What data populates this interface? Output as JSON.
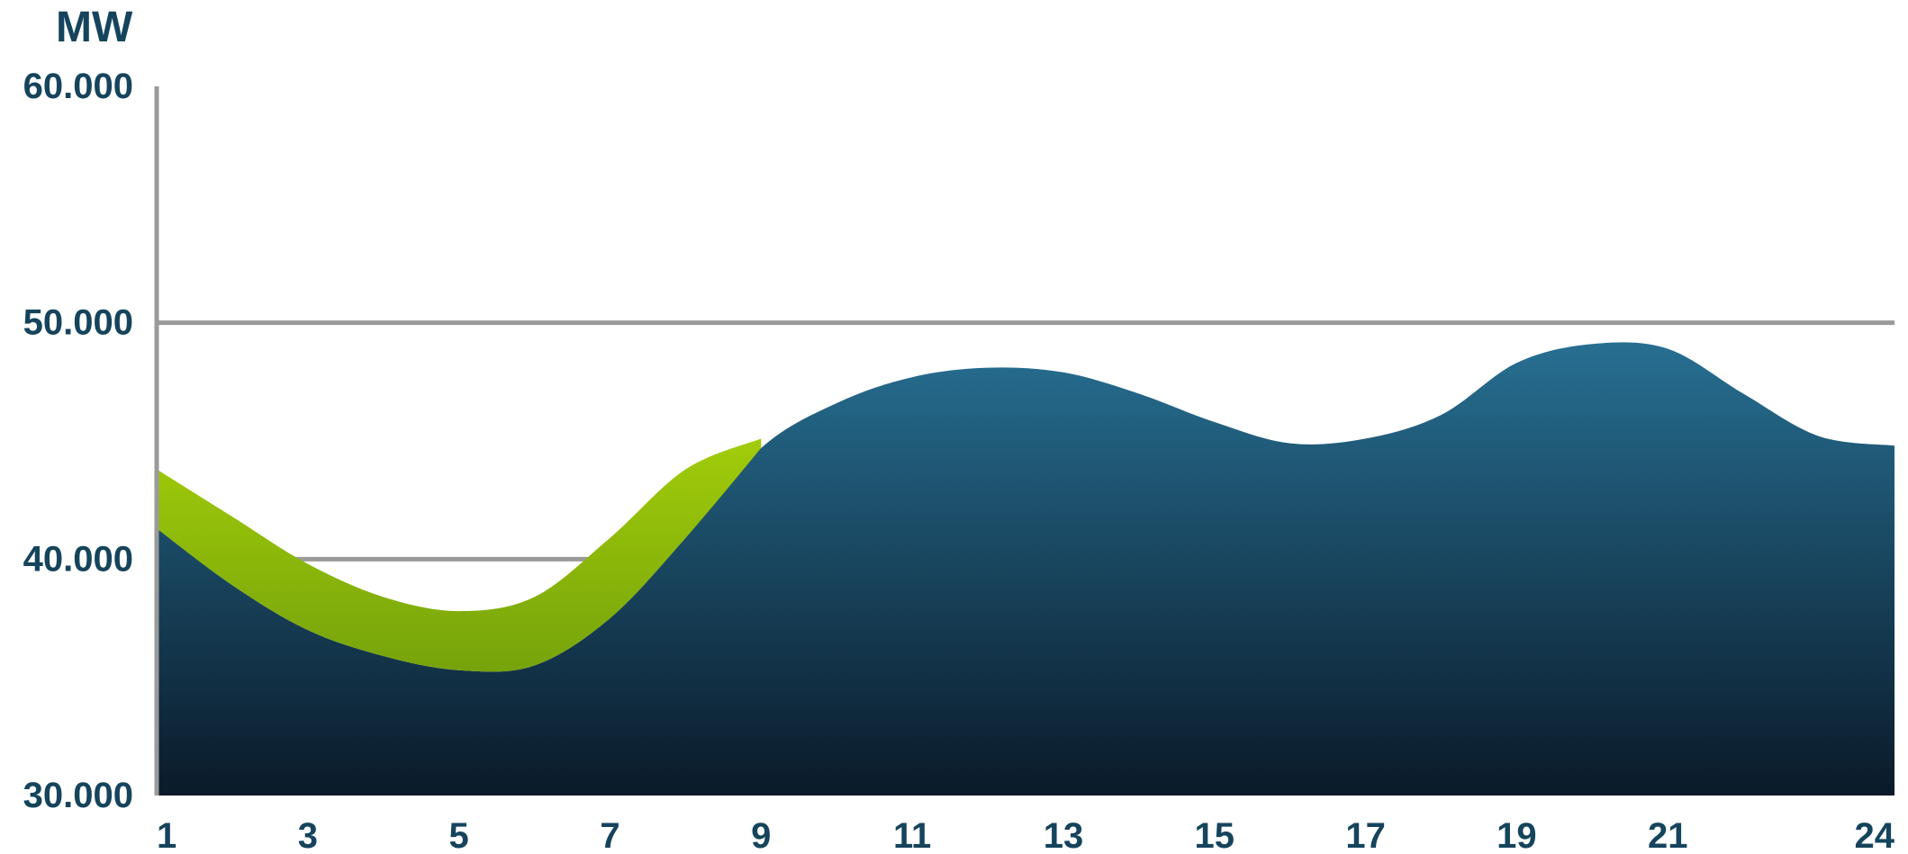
{
  "chart_data": {
    "type": "area",
    "ylabel": "MW",
    "ylim": [
      30000,
      60000
    ],
    "y_ticks": [
      30000,
      40000,
      50000,
      60000
    ],
    "y_tick_labels": [
      "30.000",
      "40.000",
      "50.000",
      "60.000"
    ],
    "x_tick_labels": [
      "1",
      "3",
      "5",
      "7",
      "9",
      "11",
      "13",
      "15",
      "17",
      "19",
      "21",
      "24"
    ],
    "grid": true,
    "series": [
      {
        "color": "#1f5e80",
        "x": [
          1,
          2,
          3,
          4,
          5,
          6,
          7,
          8,
          9,
          10,
          11,
          12,
          13,
          14,
          15,
          16,
          17,
          18,
          19,
          20,
          21,
          22,
          23,
          24
        ],
        "values": [
          41300,
          38900,
          37000,
          35900,
          35300,
          35500,
          37500,
          40900,
          44700,
          46600,
          47700,
          48100,
          47900,
          47000,
          45800,
          44900,
          45100,
          46100,
          48300,
          49100,
          48900,
          47000,
          45200,
          44800
        ]
      },
      {
        "color": "#8dbd0c",
        "x": [
          1,
          2,
          3,
          4,
          5,
          6,
          7,
          8,
          9
        ],
        "lower": [
          41300,
          38900,
          37000,
          35900,
          35300,
          35500,
          37500,
          40900,
          44700
        ],
        "upper": [
          43800,
          41800,
          39800,
          38400,
          37800,
          38400,
          40900,
          43800,
          45100
        ]
      }
    ]
  },
  "colors": {
    "text": "#15445c",
    "grid": "#9a9a9a",
    "area_top": "#276f92",
    "area_bottom": "#0a1a29",
    "band_top": "#a2cc0a",
    "band_bottom": "#76a30b"
  }
}
